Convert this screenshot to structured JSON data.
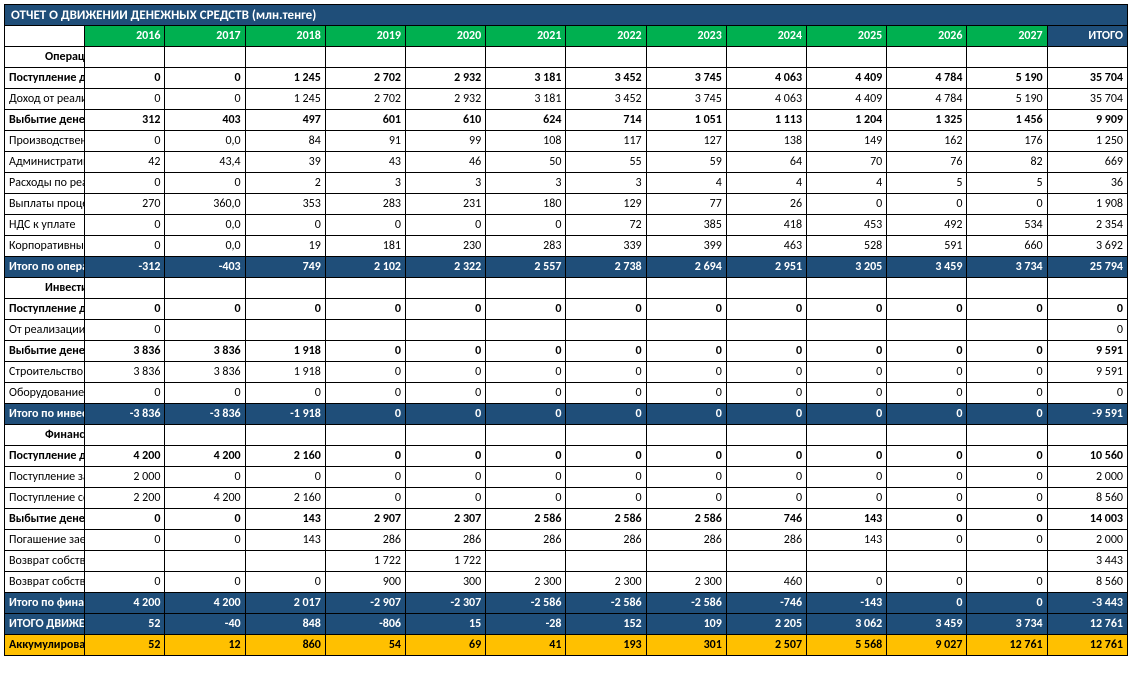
{
  "title": "ОТЧЕТ О ДВИЖЕНИИ ДЕНЕЖНЫХ СРЕДСТВ (млн.тенге)",
  "years": [
    "2016",
    "2017",
    "2018",
    "2019",
    "2020",
    "2021",
    "2022",
    "2023",
    "2024",
    "2025",
    "2026",
    "2027"
  ],
  "totalLabel": "ИТОГО",
  "colors": {
    "titleBg": "#1f4e79",
    "yearBg": "#00b050",
    "subtotalBg": "#1f4e79",
    "grandBg": "#ffc000",
    "border": "#000000"
  },
  "rows": [
    {
      "type": "section",
      "label": "Операционная деятельность"
    },
    {
      "type": "bold",
      "label": "Поступление денежных средств",
      "v": [
        "0",
        "0",
        "1 245",
        "2 702",
        "2 932",
        "3 181",
        "3 452",
        "3 745",
        "4 063",
        "4 409",
        "4 784",
        "5 190"
      ],
      "t": "35 704"
    },
    {
      "type": "plain",
      "label": "Доход от реализации продукции",
      "v": [
        "0",
        "0",
        "1 245",
        "2 702",
        "2 932",
        "3 181",
        "3 452",
        "3 745",
        "4 063",
        "4 409",
        "4 784",
        "5 190"
      ],
      "t": "35 704"
    },
    {
      "type": "bold",
      "label": "Выбытие денежных средств",
      "v": [
        "312",
        "403",
        "497",
        "601",
        "610",
        "624",
        "714",
        "1 051",
        "1 113",
        "1 204",
        "1 325",
        "1 456"
      ],
      "t": "9 909"
    },
    {
      "type": "plain",
      "label": "Производственные расходы",
      "v": [
        "0",
        "0,0",
        "84",
        "91",
        "99",
        "108",
        "117",
        "127",
        "138",
        "149",
        "162",
        "176"
      ],
      "t": "1 250"
    },
    {
      "type": "plain",
      "label": "Административные расходы",
      "v": [
        "42",
        "43,4",
        "39",
        "43",
        "46",
        "50",
        "55",
        "59",
        "64",
        "70",
        "76",
        "82"
      ],
      "t": "669"
    },
    {
      "type": "plain",
      "label": "Расходы по реализации",
      "v": [
        "0",
        "0",
        "2",
        "3",
        "3",
        "3",
        "3",
        "4",
        "4",
        "4",
        "5",
        "5"
      ],
      "t": "36"
    },
    {
      "type": "plain",
      "label": "Выплаты процентов по займу",
      "v": [
        "270",
        "360,0",
        "353",
        "283",
        "231",
        "180",
        "129",
        "77",
        "26",
        "0",
        "0",
        "0"
      ],
      "t": "1 908"
    },
    {
      "type": "plain",
      "label": "НДС к уплате",
      "v": [
        "0",
        "0,0",
        "0",
        "0",
        "0",
        "0",
        "72",
        "385",
        "418",
        "453",
        "492",
        "534"
      ],
      "t": "2 354"
    },
    {
      "type": "plain",
      "label": "Корпоративный налог",
      "v": [
        "0",
        "0,0",
        "19",
        "181",
        "230",
        "283",
        "339",
        "399",
        "463",
        "528",
        "591",
        "660"
      ],
      "t": "3 692"
    },
    {
      "type": "subtotal",
      "label": "Итого по операционной деятельности",
      "v": [
        "-312",
        "-403",
        "749",
        "2 102",
        "2 322",
        "2 557",
        "2 738",
        "2 694",
        "2 951",
        "3 205",
        "3 459",
        "3 734"
      ],
      "t": "25 794"
    },
    {
      "type": "section",
      "label": "Инвестиционная деятельность"
    },
    {
      "type": "bold",
      "label": "Поступление денежных средств",
      "v": [
        "0",
        "0",
        "0",
        "0",
        "0",
        "0",
        "0",
        "0",
        "0",
        "0",
        "0",
        "0"
      ],
      "t": "0"
    },
    {
      "type": "plain",
      "label": "От реализации основных средств",
      "v": [
        "0",
        "",
        "",
        "",
        "",
        "",
        "",
        "",
        "",
        "",
        "",
        ""
      ],
      "t": "0"
    },
    {
      "type": "bold",
      "label": "Выбытие денежных средств",
      "v": [
        "3 836",
        "3 836",
        "1 918",
        "0",
        "0",
        "0",
        "0",
        "0",
        "0",
        "0",
        "0",
        "0"
      ],
      "t": "9 591"
    },
    {
      "type": "plain",
      "label": "Строительство",
      "v": [
        "3 836",
        "3 836",
        "1 918",
        "0",
        "0",
        "0",
        "0",
        "0",
        "0",
        "0",
        "0",
        "0"
      ],
      "t": "9 591"
    },
    {
      "type": "plain",
      "label": "Оборудование",
      "v": [
        "0",
        "0",
        "0",
        "0",
        "0",
        "0",
        "0",
        "0",
        "0",
        "0",
        "0",
        "0"
      ],
      "t": "0"
    },
    {
      "type": "subtotal",
      "label": "Итого по инвест. деятельности",
      "v": [
        "-3 836",
        "-3 836",
        "-1 918",
        "0",
        "0",
        "0",
        "0",
        "0",
        "0",
        "0",
        "0",
        "0"
      ],
      "t": "-9 591"
    },
    {
      "type": "section",
      "label": "Финансовая деятельность"
    },
    {
      "type": "bold",
      "label": "Поступление денежных средств",
      "v": [
        "4 200",
        "4 200",
        "2 160",
        "0",
        "0",
        "0",
        "0",
        "0",
        "0",
        "0",
        "0",
        "0"
      ],
      "t": "10 560"
    },
    {
      "type": "plain",
      "label": "Поступление займа",
      "v": [
        "2 000",
        "0",
        "0",
        "0",
        "0",
        "0",
        "0",
        "0",
        "0",
        "0",
        "0",
        "0"
      ],
      "t": "2 000"
    },
    {
      "type": "plain",
      "label": "Поступление собственных средств",
      "v": [
        "2 200",
        "4 200",
        "2 160",
        "0",
        "0",
        "0",
        "0",
        "0",
        "0",
        "0",
        "0",
        "0"
      ],
      "t": "8 560"
    },
    {
      "type": "bold",
      "label": "Выбытие денежных средств",
      "v": [
        "0",
        "0",
        "143",
        "2 907",
        "2 307",
        "2 586",
        "2 586",
        "2 586",
        "746",
        "143",
        "0",
        "0"
      ],
      "t": "14 003"
    },
    {
      "type": "plain",
      "label": "Погашение  заема банку",
      "v": [
        "0",
        "0",
        "143",
        "286",
        "286",
        "286",
        "286",
        "286",
        "286",
        "143",
        "0",
        "0"
      ],
      "t": "2 000"
    },
    {
      "type": "plain",
      "label": "Возврат собственных вложений 2015 г.",
      "v": [
        "",
        "",
        "",
        "1 722",
        "1 722",
        "",
        "",
        "",
        "",
        "",
        "",
        ""
      ],
      "t": "3 443"
    },
    {
      "type": "plain",
      "label": "Возврат собственных вложений",
      "v": [
        "0",
        "0",
        "0",
        "900",
        "300",
        "2 300",
        "2 300",
        "2 300",
        "460",
        "0",
        "0",
        "0"
      ],
      "t": "8 560"
    },
    {
      "type": "subtotal",
      "label": "Итого по финансовой деятельности",
      "v": [
        "4 200",
        "4 200",
        "2 017",
        "-2 907",
        "-2 307",
        "-2 586",
        "-2 586",
        "-2 586",
        "-746",
        "-143",
        "0",
        "0"
      ],
      "t": "-3 443"
    },
    {
      "type": "subtotal",
      "label": "ИТОГО ДВИЖЕНИЕ ДЕНЕГ",
      "v": [
        "52",
        "-40",
        "848",
        "-806",
        "15",
        "-28",
        "152",
        "109",
        "2 205",
        "3 062",
        "3 459",
        "3 734"
      ],
      "t": "12 761"
    },
    {
      "type": "grand",
      "label": "Аккумулированный денежный поток",
      "v": [
        "52",
        "12",
        "860",
        "54",
        "69",
        "41",
        "193",
        "301",
        "2 507",
        "5 568",
        "9 027",
        "12 761"
      ],
      "t": "12 761"
    }
  ]
}
